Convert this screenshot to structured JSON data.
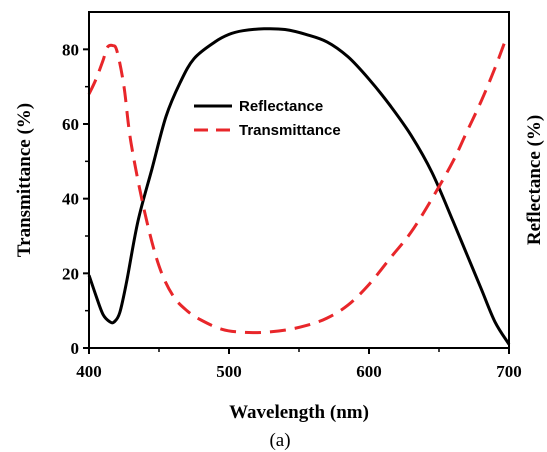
{
  "chart_data": {
    "type": "line",
    "xlabel": "Wavelength (nm)",
    "ylabel_left": "Transmittance (%)",
    "ylabel_right": "Reflectance (%)",
    "caption": "(a)",
    "xlim": [
      400,
      700
    ],
    "ylim": [
      0,
      90
    ],
    "x_ticks": [
      400,
      500,
      600,
      700
    ],
    "y_ticks": [
      0,
      20,
      40,
      60,
      80
    ],
    "grid": false,
    "legend_position": "upper-center",
    "series": [
      {
        "name": "Reflectance",
        "color": "#000000",
        "style": "solid",
        "x": [
          400,
          405,
          410,
          415,
          418,
          422,
          427,
          435,
          445,
          455,
          465,
          475,
          490,
          500,
          510,
          525,
          540,
          555,
          570,
          585,
          600,
          615,
          630,
          645,
          660,
          670,
          680,
          690,
          700
        ],
        "y": [
          19.5,
          14,
          9,
          7,
          7,
          9.5,
          18,
          34,
          48,
          62,
          71,
          77.5,
          82,
          84,
          85,
          85.5,
          85.3,
          84,
          82,
          78,
          72,
          65,
          57,
          47,
          34,
          25,
          16,
          7,
          1
        ]
      },
      {
        "name": "Transmittance",
        "color": "#e8262a",
        "style": "dashed",
        "x": [
          400,
          405,
          410,
          413,
          417,
          420,
          425,
          430,
          440,
          450,
          460,
          470,
          480,
          495,
          510,
          525,
          540,
          555,
          570,
          585,
          600,
          615,
          630,
          645,
          660,
          670,
          680,
          690,
          698
        ],
        "y": [
          68,
          72,
          77,
          80.5,
          81,
          79.5,
          70,
          55,
          36,
          22,
          14,
          10,
          7.5,
          5,
          4.2,
          4.2,
          4.8,
          6,
          8,
          11.5,
          17,
          24,
          31,
          40,
          50,
          58,
          66,
          75,
          83
        ]
      }
    ]
  }
}
